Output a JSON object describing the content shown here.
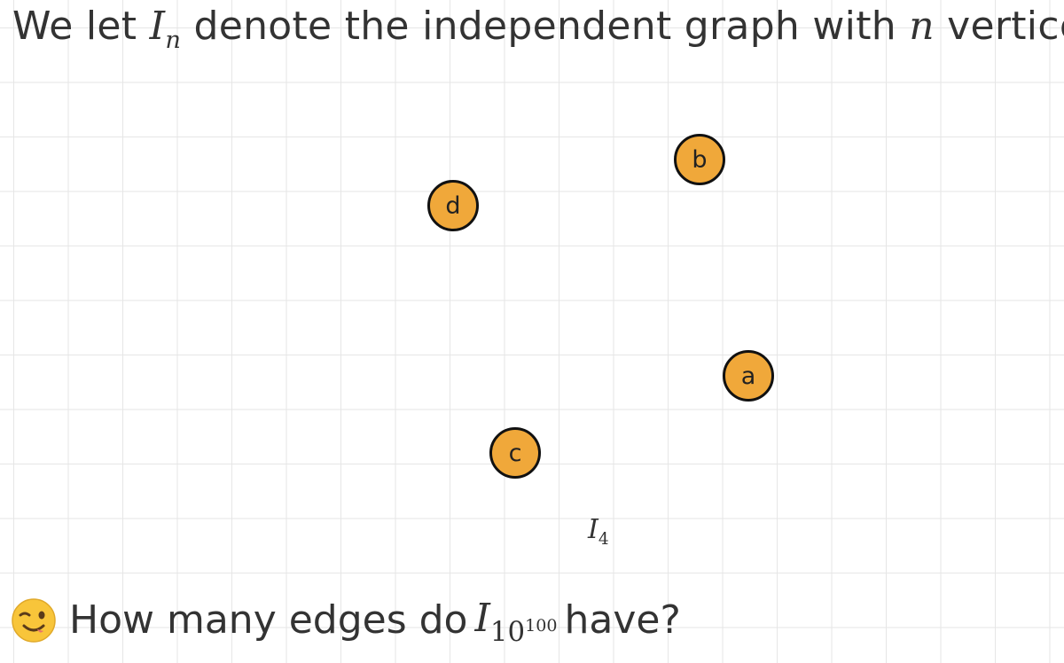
{
  "heading": {
    "text_before": "We let ",
    "symbol": "I",
    "symbol_sub": "n",
    "text_middle": " denote the independent graph with ",
    "n": "n",
    "text_after": " vertices."
  },
  "graph": {
    "vertices": [
      {
        "label": "a"
      },
      {
        "label": "b"
      },
      {
        "label": "c"
      },
      {
        "label": "d"
      }
    ],
    "edges": [],
    "vertex_fill": "#f0a83a",
    "vertex_stroke": "#111111",
    "caption_symbol": "I",
    "caption_sub": "4"
  },
  "question": {
    "emoji": "winking-face-icon",
    "text_before": "How many edges do ",
    "symbol": "I",
    "sub_base": "10",
    "sub_exp": "100",
    "text_after": " have?"
  }
}
